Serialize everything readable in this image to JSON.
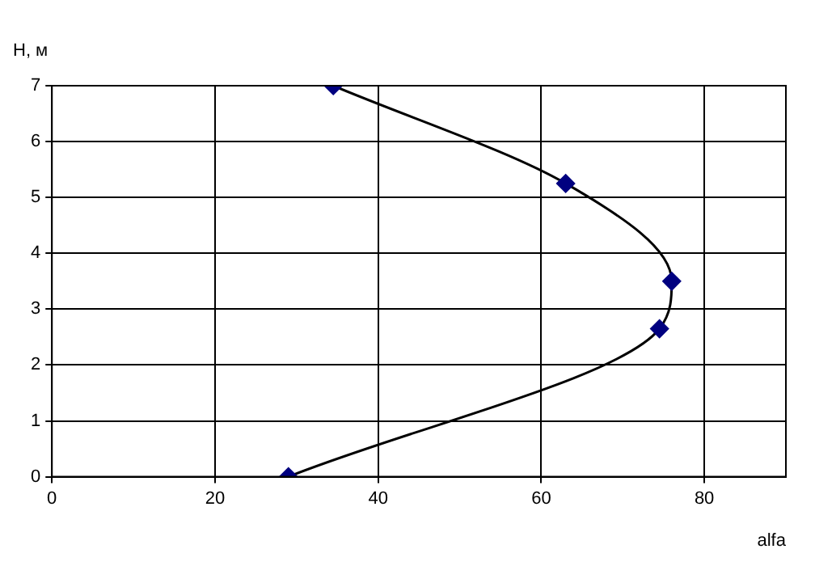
{
  "chart_data": {
    "type": "line",
    "xlabel": "alfa",
    "ylabel": "H, м",
    "series": [
      {
        "color": "#000080",
        "x": [
          29,
          74.5,
          76,
          63,
          34.5
        ],
        "values": [
          0,
          2.65,
          3.5,
          5.25,
          7
        ]
      }
    ],
    "xlim": [
      0,
      90
    ],
    "xticks": [
      0,
      20,
      40,
      60,
      80
    ],
    "ylim": [
      0,
      7
    ],
    "yticks": [
      0,
      1,
      2,
      3,
      4,
      5,
      6,
      7
    ],
    "grid": true,
    "legend": false,
    "marker": "diamond",
    "line_style": "solid"
  }
}
